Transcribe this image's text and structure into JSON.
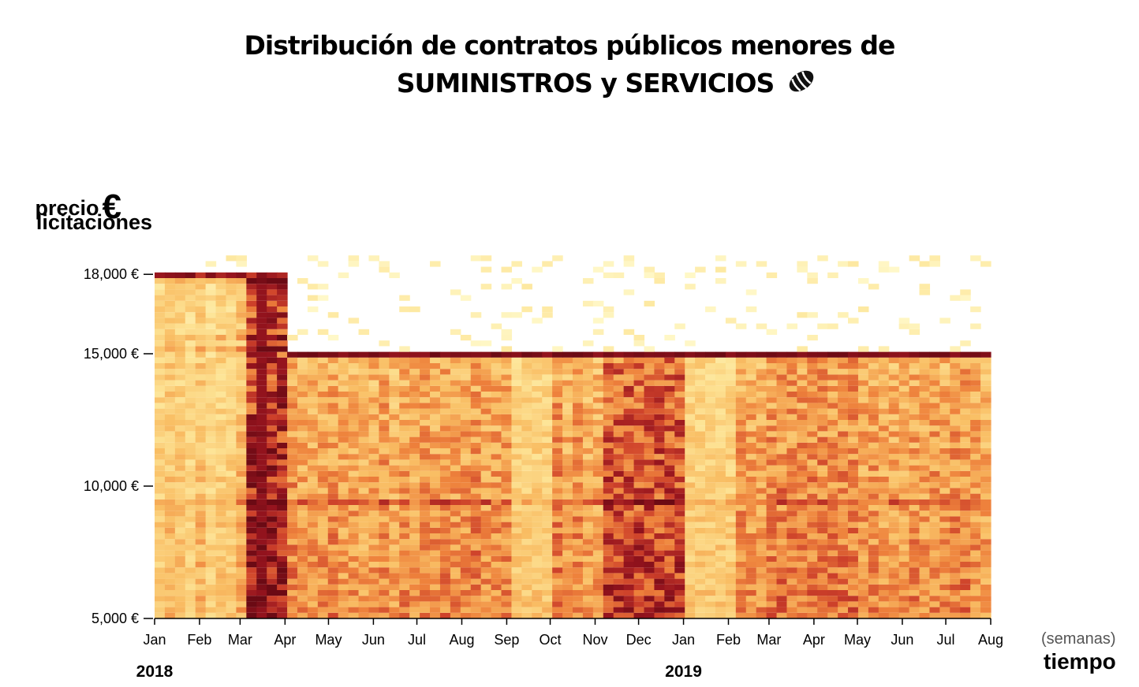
{
  "title_line1": "Distribución de contratos públicos menores de",
  "title_line2": "SUMINISTROS y SERVICIOS",
  "title_icon": "bread-icon",
  "y_label_line1": "precio",
  "y_label_euro": "€",
  "y_label_line2": "licitaciones",
  "x_label_unit": "(semanas)",
  "x_label": "tiempo",
  "colors": {
    "low": "#fffbd0",
    "mid": "#f4a64a",
    "high": "#6b0a14"
  },
  "chart_data": {
    "type": "heatmap",
    "x_axis": {
      "type": "time",
      "range": [
        "2018-01-01",
        "2019-08-01"
      ],
      "bin": "week",
      "ticks": [
        {
          "date": "2018-01-01",
          "label": "Jan"
        },
        {
          "date": "2018-02-01",
          "label": "Feb"
        },
        {
          "date": "2018-03-01",
          "label": "Mar"
        },
        {
          "date": "2018-04-01",
          "label": "Apr"
        },
        {
          "date": "2018-05-01",
          "label": "May"
        },
        {
          "date": "2018-06-01",
          "label": "Jun"
        },
        {
          "date": "2018-07-01",
          "label": "Jul"
        },
        {
          "date": "2018-08-01",
          "label": "Aug"
        },
        {
          "date": "2018-09-01",
          "label": "Sep"
        },
        {
          "date": "2018-10-01",
          "label": "Oct"
        },
        {
          "date": "2018-11-01",
          "label": "Nov"
        },
        {
          "date": "2018-12-01",
          "label": "Dec"
        },
        {
          "date": "2019-01-01",
          "label": "Jan"
        },
        {
          "date": "2019-02-01",
          "label": "Feb"
        },
        {
          "date": "2019-03-01",
          "label": "Mar"
        },
        {
          "date": "2019-04-01",
          "label": "Apr"
        },
        {
          "date": "2019-05-01",
          "label": "May"
        },
        {
          "date": "2019-06-01",
          "label": "Jun"
        },
        {
          "date": "2019-07-01",
          "label": "Jul"
        },
        {
          "date": "2019-08-01",
          "label": "Aug"
        }
      ],
      "year_labels": [
        {
          "date": "2018-01-01",
          "label": "2018"
        },
        {
          "date": "2019-01-01",
          "label": "2019"
        }
      ]
    },
    "y_axis": {
      "range": [
        5000,
        18000
      ],
      "ticks": [
        {
          "value": 5000,
          "label": "5,000 €"
        },
        {
          "value": 10000,
          "label": "10,000 €"
        },
        {
          "value": 15000,
          "label": "15,000 €"
        },
        {
          "value": 18000,
          "label": "18,000 €"
        }
      ]
    },
    "color_scale": "YlOrRd (density of tenders)",
    "features": {
      "cap_2018_q1": 18000,
      "cap_from_2018_03": 15000,
      "dense_periods": [
        "2018-03",
        "2018-11",
        "2018-12",
        "2019-03"
      ]
    }
  }
}
